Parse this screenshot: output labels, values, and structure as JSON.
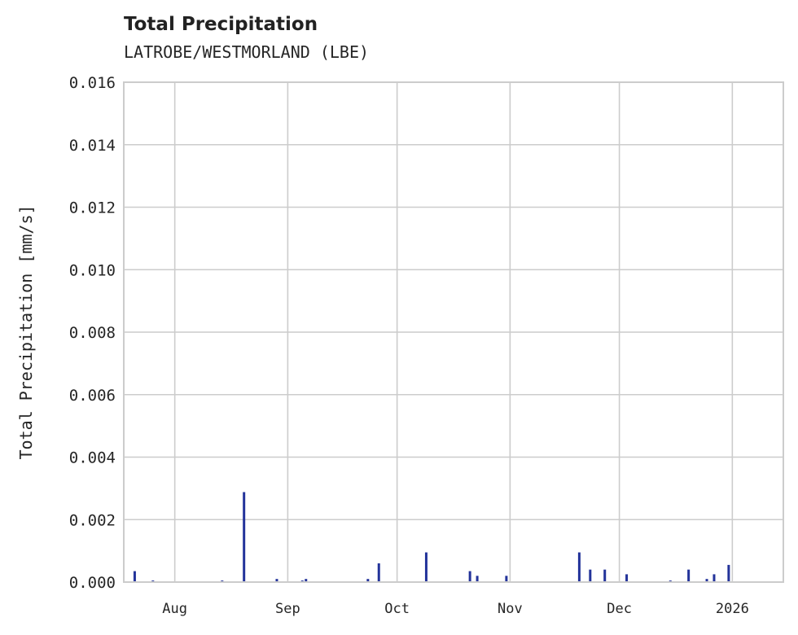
{
  "chart_data": {
    "type": "bar",
    "title": "Total Precipitation",
    "subtitle": "LATROBE/WESTMORLAND (LBE)",
    "xlabel": "",
    "ylabel": "Total Precipitation [mm/s]",
    "xlim": [
      "2025-07-18",
      "2026-01-15"
    ],
    "ylim": [
      0,
      0.016
    ],
    "grid": true,
    "color": "#23339a",
    "yticks": [
      "0.000",
      "0.002",
      "0.004",
      "0.006",
      "0.008",
      "0.010",
      "0.012",
      "0.014",
      "0.016"
    ],
    "xticks": [
      {
        "date": "2025-08-01",
        "label": "Aug"
      },
      {
        "date": "2025-09-01",
        "label": "Sep"
      },
      {
        "date": "2025-10-01",
        "label": "Oct"
      },
      {
        "date": "2025-11-01",
        "label": "Nov"
      },
      {
        "date": "2025-12-01",
        "label": "Dec"
      },
      {
        "date": "2026-01-01",
        "label": "2026"
      }
    ],
    "points": [
      {
        "x": "2025-07-21",
        "y": 0.00035
      },
      {
        "x": "2025-07-26",
        "y": 5e-05
      },
      {
        "x": "2025-08-14",
        "y": 5e-05
      },
      {
        "x": "2025-08-20",
        "y": 0.00288
      },
      {
        "x": "2025-08-29",
        "y": 0.0001
      },
      {
        "x": "2025-09-05",
        "y": 5e-05
      },
      {
        "x": "2025-09-06",
        "y": 0.0001
      },
      {
        "x": "2025-09-23",
        "y": 0.0001
      },
      {
        "x": "2025-09-26",
        "y": 0.0006
      },
      {
        "x": "2025-10-09",
        "y": 0.00095
      },
      {
        "x": "2025-10-21",
        "y": 0.00035
      },
      {
        "x": "2025-10-23",
        "y": 0.0002
      },
      {
        "x": "2025-10-31",
        "y": 0.0002
      },
      {
        "x": "2025-11-20",
        "y": 0.00095
      },
      {
        "x": "2025-11-23",
        "y": 0.0004
      },
      {
        "x": "2025-11-27",
        "y": 0.0004
      },
      {
        "x": "2025-12-03",
        "y": 0.00025
      },
      {
        "x": "2025-12-15",
        "y": 5e-05
      },
      {
        "x": "2025-12-20",
        "y": 0.0004
      },
      {
        "x": "2025-12-25",
        "y": 0.0001
      },
      {
        "x": "2025-12-27",
        "y": 0.00025
      },
      {
        "x": "2025-12-31",
        "y": 0.00055
      }
    ]
  }
}
